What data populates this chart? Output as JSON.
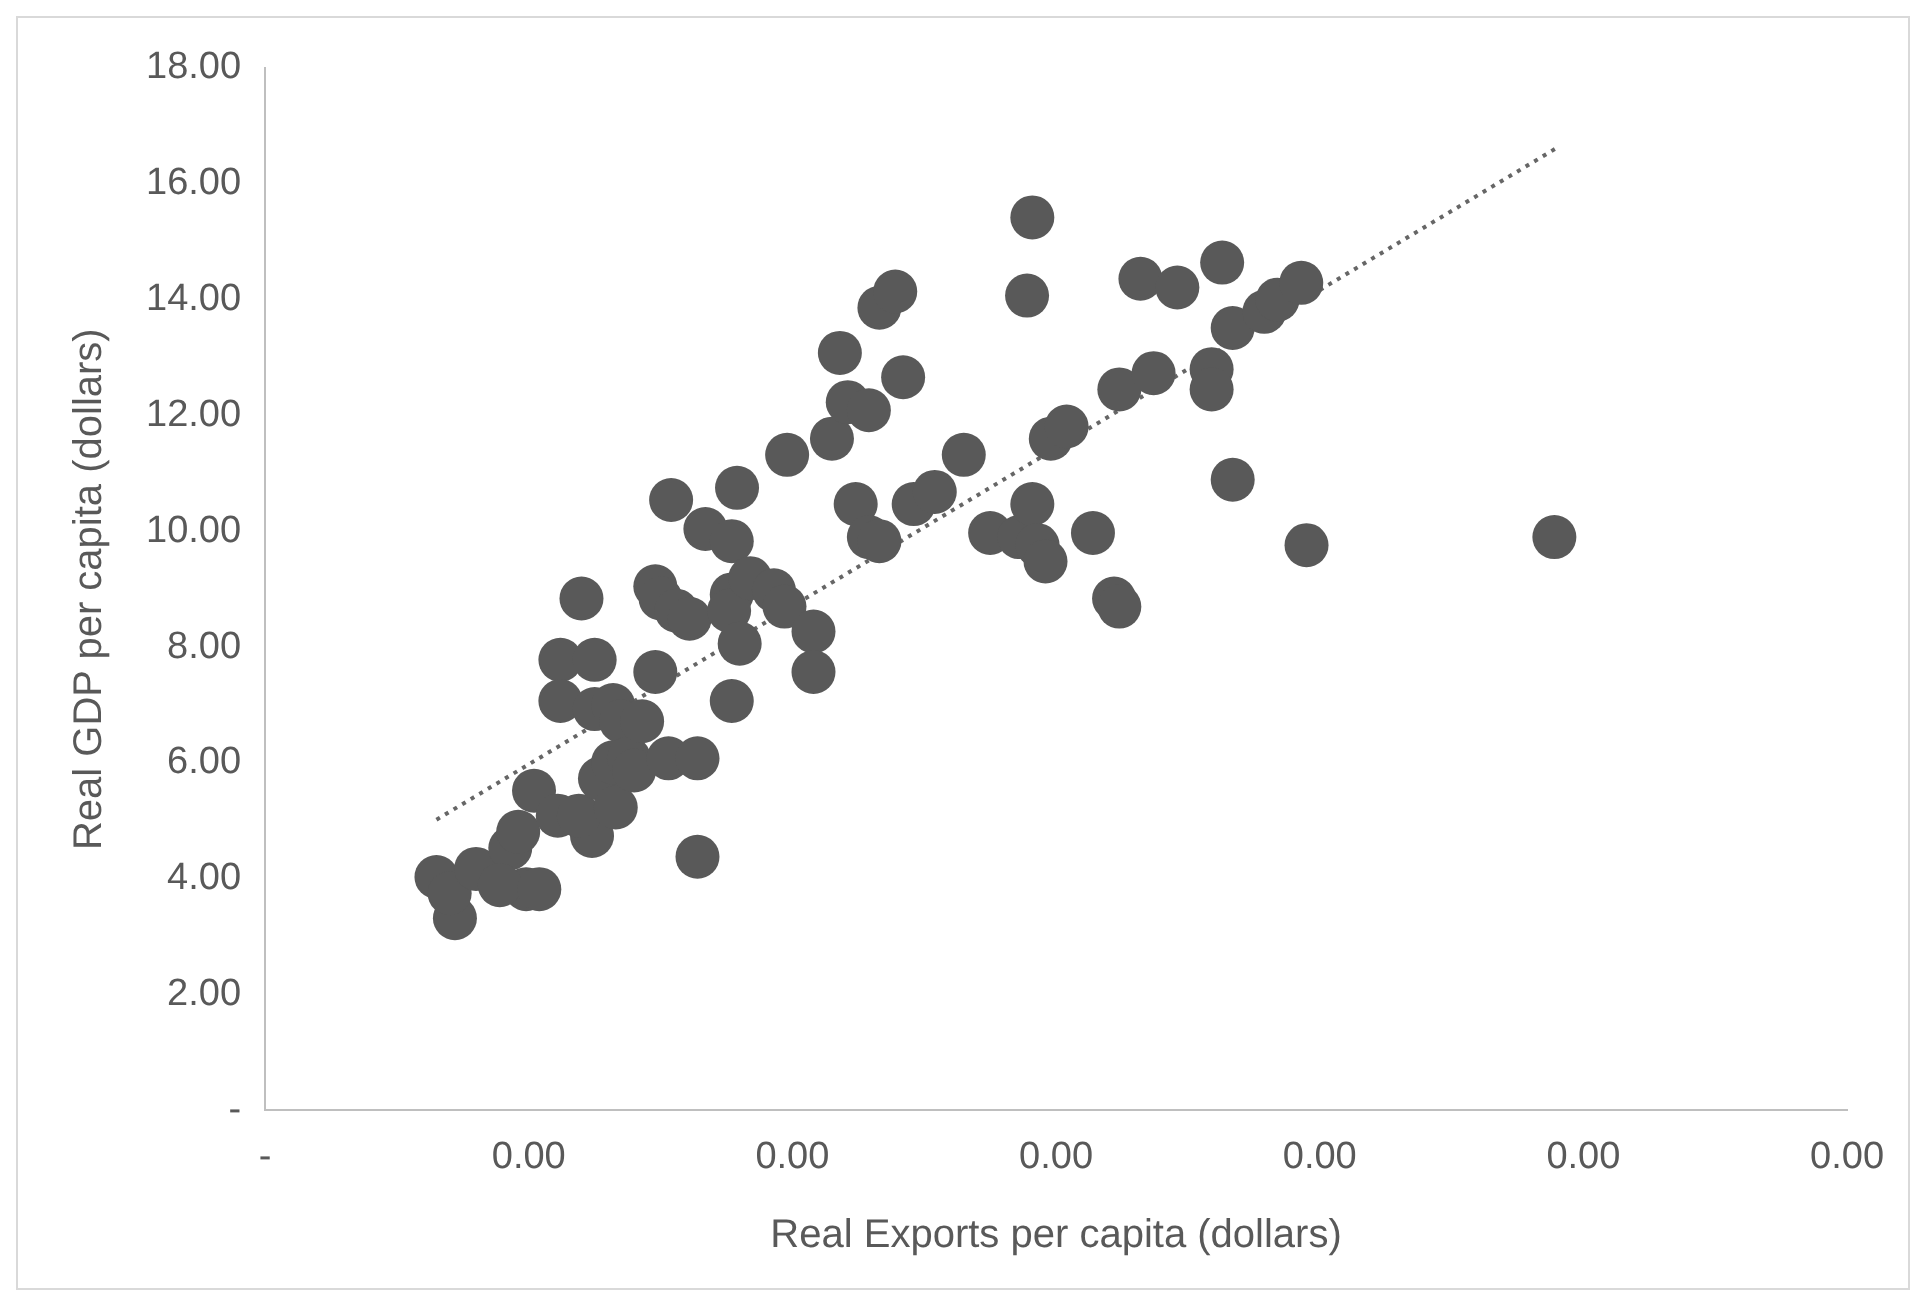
{
  "chart_data": {
    "type": "scatter",
    "xlabel": "Real Exports per capita (dollars)",
    "ylabel": "Real GDP per capita (dollars)",
    "xlim": [
      0,
      0.003
    ],
    "ylim": [
      0,
      18
    ],
    "xticks": [
      {
        "value": 0,
        "label": "-"
      },
      {
        "value": 0.0005,
        "label": "0.00"
      },
      {
        "value": 0.001,
        "label": "0.00"
      },
      {
        "value": 0.0015,
        "label": "0.00"
      },
      {
        "value": 0.002,
        "label": "0.00"
      },
      {
        "value": 0.0025,
        "label": "0.00"
      },
      {
        "value": 0.003,
        "label": "0.00"
      }
    ],
    "yticks": [
      {
        "value": 0,
        "label": "-"
      },
      {
        "value": 2,
        "label": "2.00"
      },
      {
        "value": 4,
        "label": "4.00"
      },
      {
        "value": 6,
        "label": "6.00"
      },
      {
        "value": 8,
        "label": "8.00"
      },
      {
        "value": 10,
        "label": "10.00"
      },
      {
        "value": 12,
        "label": "12.00"
      },
      {
        "value": 14,
        "label": "14.00"
      },
      {
        "value": 16,
        "label": "16.00"
      },
      {
        "value": 18,
        "label": "18.00"
      }
    ],
    "grid": false,
    "marker": "circle",
    "series": [
      {
        "color": "#595959",
        "x": [
          0.000325,
          0.00036,
          0.00035,
          0.0004,
          0.000465,
          0.00048,
          0.000495,
          0.000445,
          0.00052,
          0.00051,
          0.000555,
          0.00062,
          0.000595,
          0.00056,
          0.000625,
          0.00056,
          0.000625,
          0.00066,
          0.000675,
          0.0006,
          0.000635,
          0.00066,
          0.00069,
          0.000665,
          0.0007,
          0.000715,
          0.00074,
          0.000765,
          0.00082,
          0.00082,
          0.00077,
          0.00074,
          0.00075,
          0.00078,
          0.000805,
          0.000835,
          0.000885,
          0.000895,
          0.000885,
          0.00088,
          0.0009,
          0.000885,
          0.00092,
          0.000965,
          0.000985,
          0.00099,
          0.00104,
          0.00104,
          0.001075,
          0.00109,
          0.001105,
          0.001145,
          0.001165,
          0.001195,
          0.00121,
          0.00112,
          0.001145,
          0.001165,
          0.00123,
          0.00127,
          0.001325,
          0.001375,
          0.00143,
          0.001455,
          0.001445,
          0.001455,
          0.001465,
          0.00148,
          0.00149,
          0.00152,
          0.00157,
          0.00161,
          0.00162,
          0.00162,
          0.00166,
          0.001685,
          0.00173,
          0.001795,
          0.001795,
          0.001815,
          0.001835,
          0.001835,
          0.001895,
          0.00192,
          0.001965,
          0.001975,
          0.002445
        ],
        "values": [
          4.03,
          3.32,
          3.75,
          4.17,
          4.53,
          4.81,
          3.82,
          3.89,
          3.82,
          5.52,
          5.09,
          4.74,
          5.09,
          7.78,
          7.78,
          7.07,
          6.93,
          7.0,
          6.72,
          8.84,
          5.73,
          6.01,
          6.08,
          5.23,
          5.87,
          6.72,
          7.57,
          6.08,
          6.08,
          4.38,
          10.54,
          9.05,
          8.84,
          8.63,
          8.49,
          10.04,
          9.83,
          10.75,
          8.91,
          8.63,
          8.06,
          7.07,
          9.19,
          8.98,
          8.7,
          11.32,
          8.27,
          7.57,
          11.6,
          13.08,
          12.23,
          12.09,
          13.86,
          14.14,
          12.66,
          10.47,
          9.9,
          9.83,
          10.47,
          10.68,
          11.32,
          9.97,
          9.9,
          15.42,
          14.07,
          10.47,
          9.76,
          9.48,
          11.6,
          11.81,
          9.97,
          8.84,
          8.7,
          12.45,
          14.36,
          12.73,
          14.21,
          12.8,
          12.45,
          14.64,
          10.89,
          13.51,
          13.79,
          14.0,
          14.29,
          9.76,
          9.9
        ]
      },
      {
        "type": "line",
        "color": "#666666",
        "line_style": "dotted",
        "marker": "none",
        "x": [
          0.000325,
          0.002455
        ],
        "values": [
          5.02,
          16.65
        ]
      }
    ]
  }
}
